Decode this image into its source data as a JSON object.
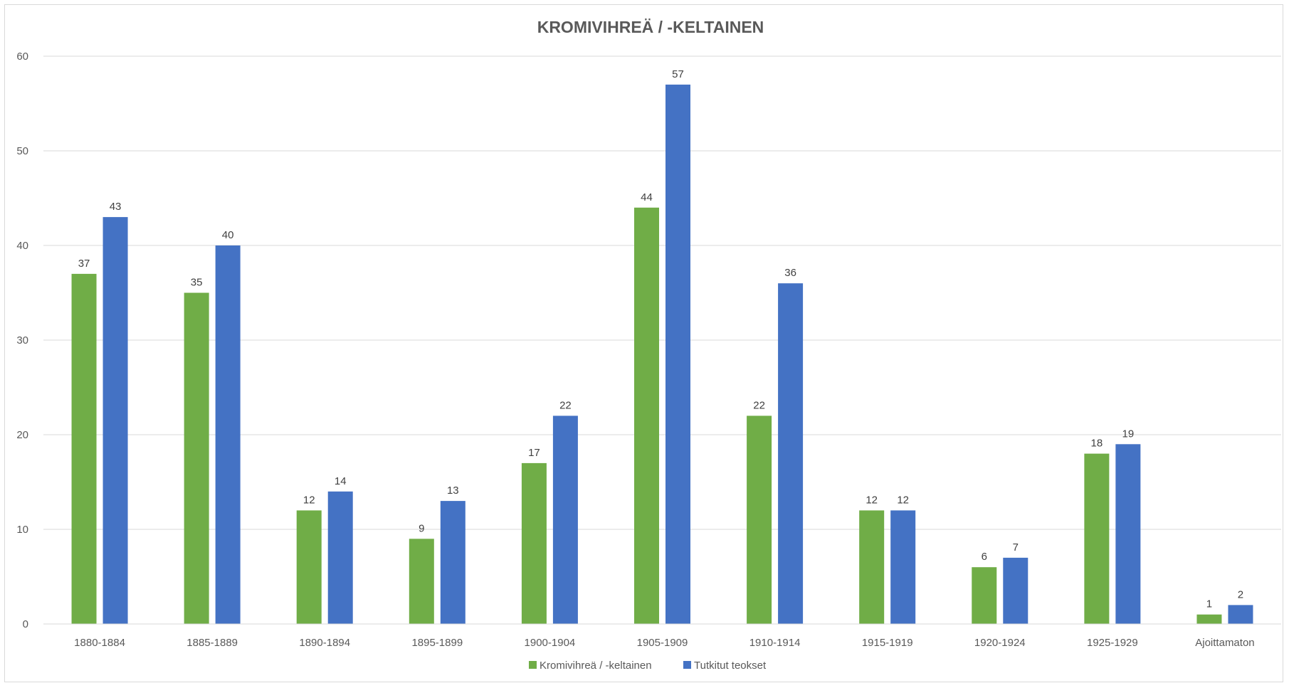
{
  "chart_data": {
    "type": "bar",
    "title": "KROMIVIHREÄ / -KELTAINEN",
    "categories": [
      "1880-1884",
      "1885-1889",
      "1890-1894",
      "1895-1899",
      "1900-1904",
      "1905-1909",
      "1910-1914",
      "1915-1919",
      "1920-1924",
      "1925-1929",
      "Ajoittamaton"
    ],
    "series": [
      {
        "name": "Kromivihreä / -keltainen",
        "color": "#70ad47",
        "values": [
          37,
          35,
          12,
          9,
          17,
          44,
          22,
          12,
          6,
          18,
          1
        ]
      },
      {
        "name": "Tutkitut teokset",
        "color": "#4472c4",
        "values": [
          43,
          40,
          14,
          13,
          22,
          57,
          36,
          12,
          7,
          19,
          2
        ]
      }
    ],
    "ylim": [
      0,
      60
    ],
    "yticks": [
      0,
      10,
      20,
      30,
      40,
      50,
      60
    ],
    "grid": true,
    "legend_position": "bottom",
    "data_labels": true
  }
}
